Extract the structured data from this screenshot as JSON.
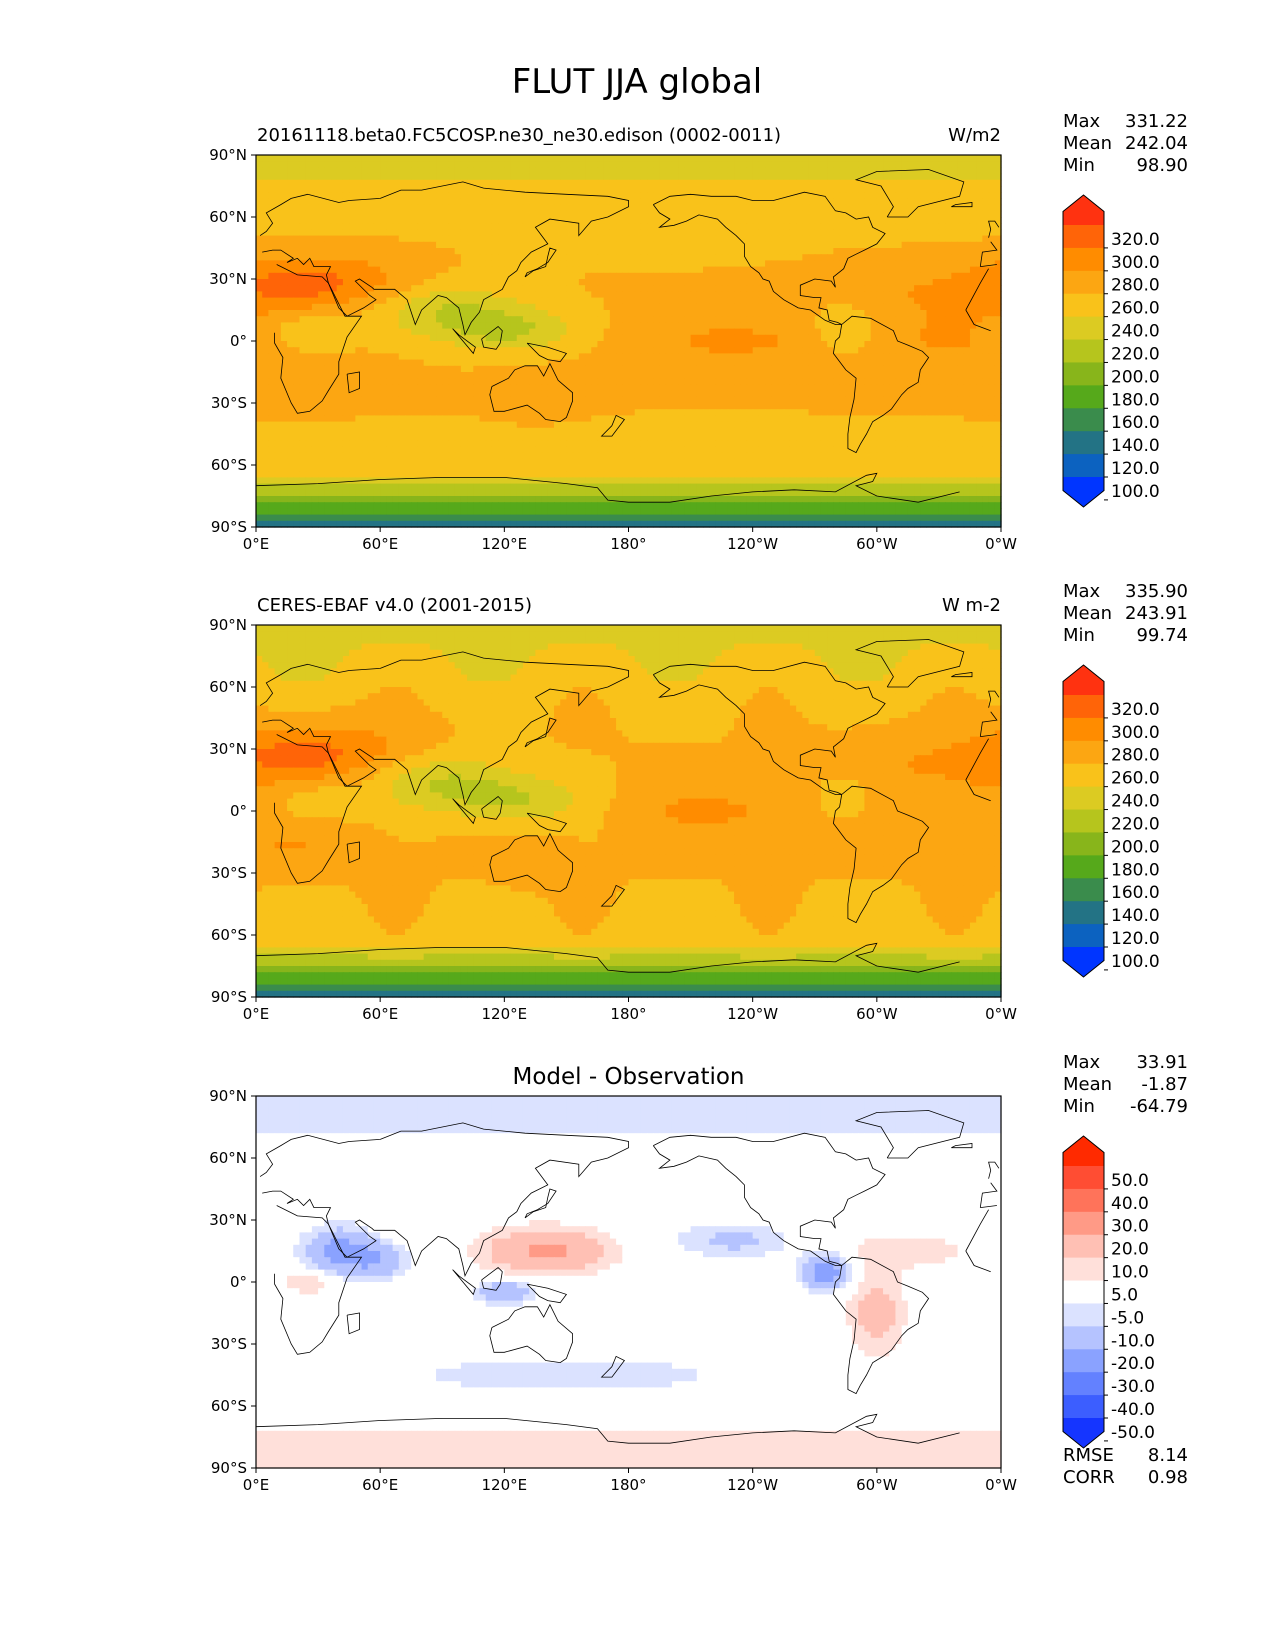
{
  "figure": {
    "title": "FLUT JJA global"
  },
  "axes": {
    "lat_ticks": [
      "90°N",
      "60°N",
      "30°N",
      "0°",
      "30°S",
      "60°S",
      "90°S"
    ],
    "lon_ticks": [
      "0°E",
      "60°E",
      "120°E",
      "180°",
      "120°W",
      "60°W",
      "0°W"
    ]
  },
  "chart_data": [
    {
      "type": "heatmap",
      "name": "model",
      "title_left": "20161118.beta0.FC5COSP.ne30_ne30.edison (0002-0011)",
      "units": "W/m2",
      "stats": {
        "max_label": "Max",
        "max": "331.22",
        "mean_label": "Mean",
        "mean": "242.04",
        "min_label": "Min",
        "min": "98.90"
      },
      "colorbar_levels": [
        "320.0",
        "300.0",
        "280.0",
        "260.0",
        "240.0",
        "220.0",
        "200.0",
        "180.0",
        "160.0",
        "140.0",
        "120.0",
        "100.0"
      ],
      "colors": [
        "#ff3210",
        "#ff6408",
        "#ff8c00",
        "#fca612",
        "#f9c21a",
        "#dccb22",
        "#b6c51d",
        "#88b51b",
        "#56a91b",
        "#3a8c4c",
        "#237385",
        "#0c62c0",
        "#0035ff"
      ]
    },
    {
      "type": "heatmap",
      "name": "observation",
      "title_left": "CERES-EBAF v4.0 (2001-2015)",
      "units": "W m-2",
      "stats": {
        "max_label": "Max",
        "max": "335.90",
        "mean_label": "Mean",
        "mean": "243.91",
        "min_label": "Min",
        "min": "99.74"
      },
      "colorbar_levels": [
        "320.0",
        "300.0",
        "280.0",
        "260.0",
        "240.0",
        "220.0",
        "200.0",
        "180.0",
        "160.0",
        "140.0",
        "120.0",
        "100.0"
      ],
      "colors": [
        "#ff3210",
        "#ff6408",
        "#ff8c00",
        "#fca612",
        "#f9c21a",
        "#dccb22",
        "#b6c51d",
        "#88b51b",
        "#56a91b",
        "#3a8c4c",
        "#237385",
        "#0c62c0",
        "#0035ff"
      ]
    },
    {
      "type": "heatmap",
      "name": "difference",
      "title_center": "Model - Observation",
      "stats": {
        "max_label": "Max",
        "max": "33.91",
        "mean_label": "Mean",
        "mean": "-1.87",
        "min_label": "Min",
        "min": "-64.79"
      },
      "colorbar_levels": [
        "50.0",
        "40.0",
        "30.0",
        "20.0",
        "10.0",
        "5.0",
        "-5.0",
        "-10.0",
        "-20.0",
        "-30.0",
        "-40.0",
        "-50.0"
      ],
      "colors": [
        "#ff2a00",
        "#ff4d33",
        "#ff735a",
        "#ff9a86",
        "#ffc0b4",
        "#ffe0da",
        "#ffffff",
        "#dbe2ff",
        "#b5c3ff",
        "#8aa2ff",
        "#6381ff",
        "#3c5eff",
        "#1535ff"
      ],
      "metrics": {
        "rmse_label": "RMSE",
        "rmse": "8.14",
        "corr_label": "CORR",
        "corr": "0.98"
      }
    }
  ]
}
